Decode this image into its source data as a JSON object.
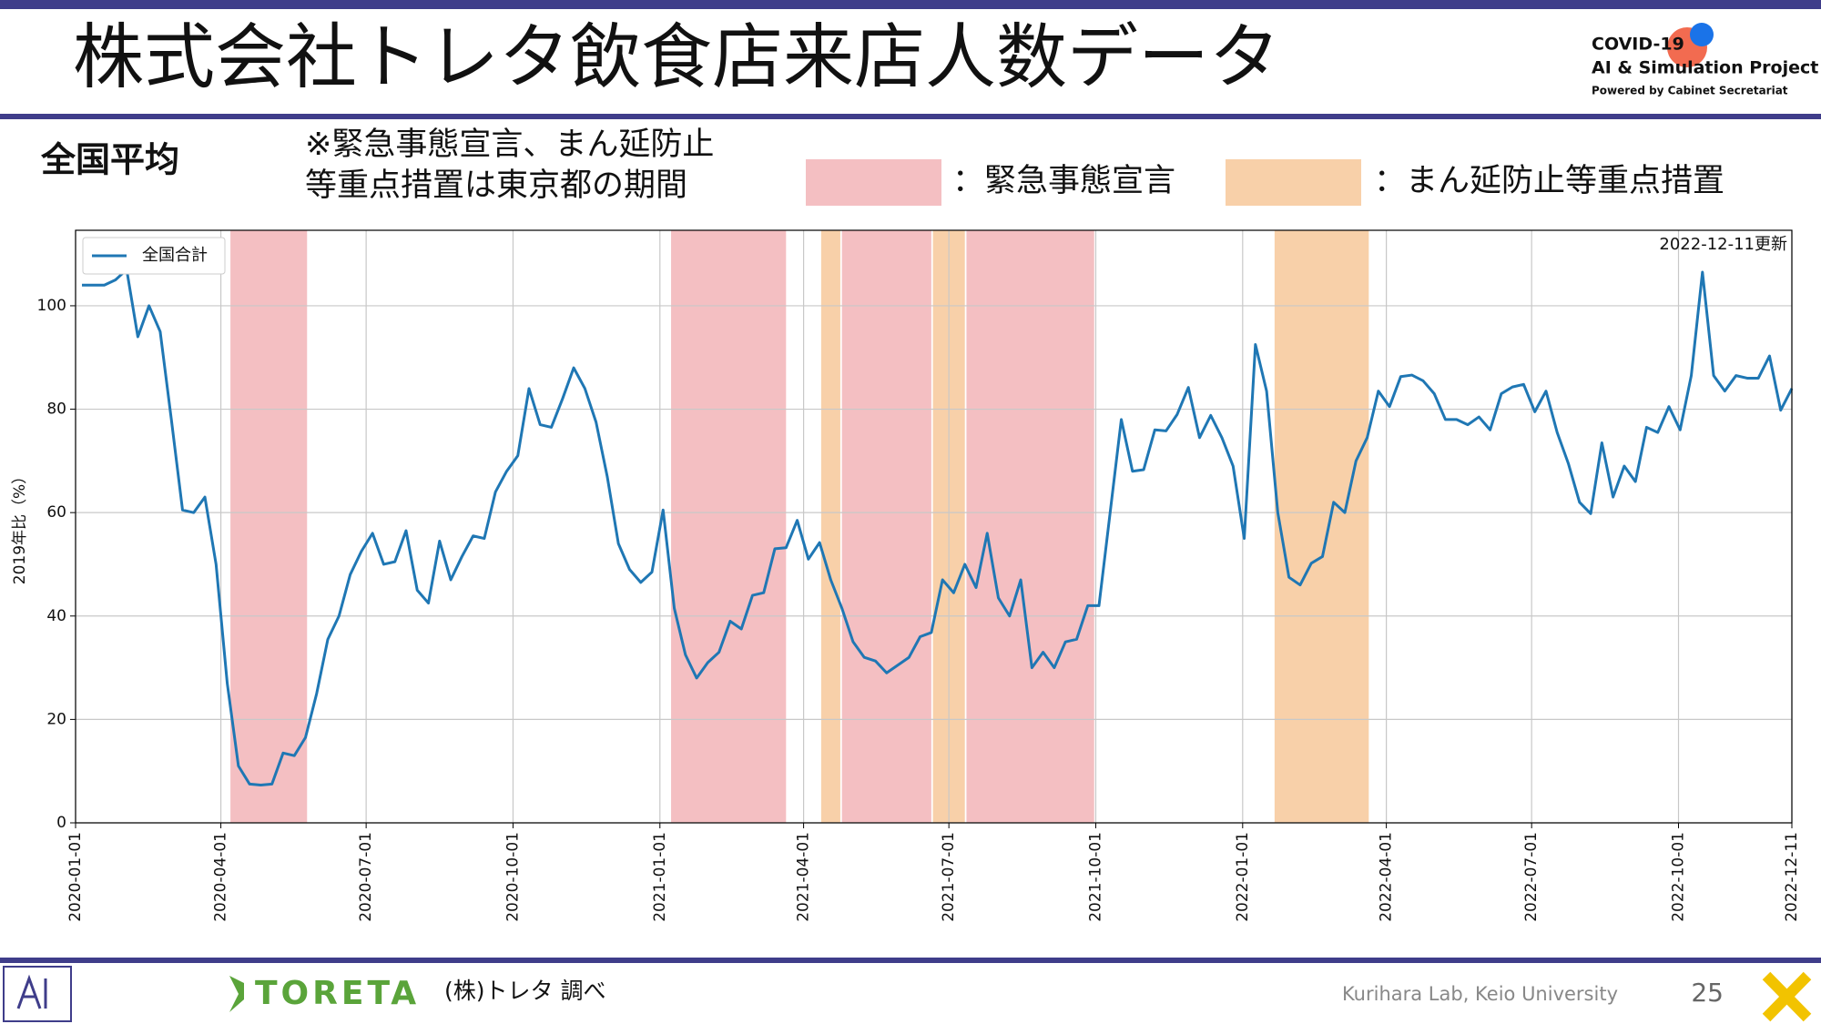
{
  "slide": {
    "title": "株式会社トレタ飲食店来店人数データ",
    "logo_line1": "COVID-19",
    "logo_line2": "AI & Simulation Project",
    "logo_line3": "Powered by Cabinet Secretariat",
    "section": "全国平均",
    "note_line1": "※緊急事態宣言、まん延防止",
    "note_line2": "等重点措置は東京都の期間",
    "source_logo": "TORETA",
    "source": "(株)トレタ 調べ",
    "lab": "Kurihara Lab, Keio University",
    "page": "25"
  },
  "chart_data": {
    "type": "line",
    "y_label": "2019年比（%）",
    "annotation": "2022-12-11更新",
    "x": [
      "2020-01-05",
      "2020-01-12",
      "2020-01-19",
      "2020-01-26",
      "2020-02-02",
      "2020-02-09",
      "2020-02-16",
      "2020-02-23",
      "2020-03-01",
      "2020-03-08",
      "2020-03-15",
      "2020-03-22",
      "2020-03-29",
      "2020-04-05",
      "2020-04-12",
      "2020-04-19",
      "2020-04-26",
      "2020-05-03",
      "2020-05-10",
      "2020-05-17",
      "2020-05-24",
      "2020-05-31",
      "2020-06-07",
      "2020-06-14",
      "2020-06-21",
      "2020-06-28",
      "2020-07-05",
      "2020-07-12",
      "2020-07-19",
      "2020-07-26",
      "2020-08-02",
      "2020-08-09",
      "2020-08-16",
      "2020-08-23",
      "2020-08-30",
      "2020-09-06",
      "2020-09-13",
      "2020-09-20",
      "2020-09-27",
      "2020-10-04",
      "2020-10-11",
      "2020-10-18",
      "2020-10-25",
      "2020-11-01",
      "2020-11-08",
      "2020-11-15",
      "2020-11-22",
      "2020-11-29",
      "2020-12-06",
      "2020-12-13",
      "2020-12-20",
      "2020-12-27",
      "2021-01-03",
      "2021-01-10",
      "2021-01-17",
      "2021-01-24",
      "2021-01-31",
      "2021-02-07",
      "2021-02-14",
      "2021-02-21",
      "2021-02-28",
      "2021-03-07",
      "2021-03-14",
      "2021-03-21",
      "2021-03-28",
      "2021-04-04",
      "2021-04-11",
      "2021-04-18",
      "2021-04-25",
      "2021-05-02",
      "2021-05-09",
      "2021-05-16",
      "2021-05-23",
      "2021-05-30",
      "2021-06-06",
      "2021-06-13",
      "2021-06-20",
      "2021-06-27",
      "2021-07-04",
      "2021-07-11",
      "2021-07-18",
      "2021-07-25",
      "2021-08-01",
      "2021-08-08",
      "2021-08-15",
      "2021-08-22",
      "2021-08-29",
      "2021-09-05",
      "2021-09-12",
      "2021-09-19",
      "2021-09-26",
      "2021-10-03",
      "2021-10-10",
      "2021-10-17",
      "2021-10-24",
      "2021-10-31",
      "2021-11-07",
      "2021-11-14",
      "2021-11-21",
      "2021-11-28",
      "2021-12-05",
      "2021-12-12",
      "2021-12-19",
      "2021-12-26",
      "2022-01-02",
      "2022-01-09",
      "2022-01-16",
      "2022-01-23",
      "2022-01-30",
      "2022-02-06",
      "2022-02-13",
      "2022-02-20",
      "2022-02-27",
      "2022-03-06",
      "2022-03-13",
      "2022-03-20",
      "2022-03-27",
      "2022-04-03",
      "2022-04-10",
      "2022-04-17",
      "2022-04-24",
      "2022-05-01",
      "2022-05-08",
      "2022-05-15",
      "2022-05-22",
      "2022-05-29",
      "2022-06-05",
      "2022-06-12",
      "2022-06-19",
      "2022-06-26",
      "2022-07-03",
      "2022-07-10",
      "2022-07-17",
      "2022-07-24",
      "2022-07-31",
      "2022-08-07",
      "2022-08-14",
      "2022-08-21",
      "2022-08-28",
      "2022-09-04",
      "2022-09-11",
      "2022-09-18",
      "2022-09-25",
      "2022-10-02",
      "2022-10-09",
      "2022-10-16",
      "2022-10-23",
      "2022-10-30",
      "2022-11-06",
      "2022-11-13",
      "2022-11-20",
      "2022-11-27",
      "2022-12-04",
      "2022-12-11"
    ],
    "series": [
      {
        "name": "全国合計",
        "color": "#1f77b4",
        "values": [
          104,
          104,
          104,
          105,
          107,
          94,
          100,
          95,
          78,
          60.5,
          60,
          63,
          50,
          27,
          11,
          7.5,
          7.3,
          7.5,
          13.5,
          13,
          16.5,
          25,
          35.5,
          40,
          48,
          52.5,
          56,
          50,
          50.5,
          56.5,
          45,
          42.5,
          54.5,
          47,
          51.5,
          55.5,
          55,
          64,
          68,
          71,
          84,
          77,
          76.5,
          82,
          88,
          84,
          77.5,
          67,
          54,
          49,
          46.5,
          48.5,
          60.5,
          41.5,
          32.5,
          28,
          31,
          33,
          39,
          37.5,
          44,
          44.5,
          53,
          53.2,
          58.5,
          51,
          54.2,
          47,
          41.5,
          35,
          32,
          31.3,
          29,
          30.5,
          32,
          36,
          36.8,
          47,
          44.5,
          50,
          45.5,
          56,
          43.5,
          40,
          47,
          30,
          33,
          30,
          35,
          35.5,
          42,
          42,
          60,
          78,
          68,
          68.3,
          76,
          75.8,
          79,
          84.2,
          74.5,
          78.8,
          74.5,
          69,
          55,
          92.5,
          83.5,
          60,
          47.5,
          46,
          50.2,
          51.5,
          62,
          60,
          70,
          74.5,
          83.5,
          80.5,
          86.3,
          86.6,
          85.5,
          83,
          78,
          78,
          77,
          78.5,
          76,
          83,
          84.3,
          84.8,
          79.5,
          83.5,
          75.5,
          69.5,
          62,
          59.8,
          73.5,
          63,
          69,
          66,
          76.5,
          75.5,
          80.5,
          76,
          86.5,
          106.5,
          86.5,
          83.5,
          86.5,
          86,
          86,
          90.3,
          79.8,
          84
        ]
      }
    ],
    "shading": [
      {
        "name": "：緊急事態宣言",
        "color": "#f4bfc2",
        "periods": [
          [
            "2020-04-07",
            "2020-05-25"
          ],
          [
            "2021-01-08",
            "2021-03-21"
          ],
          [
            "2021-04-25",
            "2021-06-20"
          ],
          [
            "2021-07-12",
            "2021-09-30"
          ]
        ]
      },
      {
        "name": "：まん延防止等重点措置",
        "color": "#f8d0a9",
        "periods": [
          [
            "2021-04-12",
            "2021-04-24"
          ],
          [
            "2021-06-21",
            "2021-07-11"
          ],
          [
            "2022-01-21",
            "2022-03-21"
          ]
        ]
      }
    ],
    "xlim": [
      "2020-01-01",
      "2022-12-11"
    ],
    "xticks": [
      "2020-01-01",
      "2020-04-01",
      "2020-07-01",
      "2020-10-01",
      "2021-01-01",
      "2021-04-01",
      "2021-07-01",
      "2021-10-01",
      "2022-01-01",
      "2022-04-01",
      "2022-07-01",
      "2022-10-01",
      "2022-12-11"
    ],
    "ylim": [
      0,
      114.6
    ],
    "yticks": [
      0,
      20,
      40,
      60,
      80,
      100
    ],
    "grid": true,
    "legend": "upper left"
  }
}
